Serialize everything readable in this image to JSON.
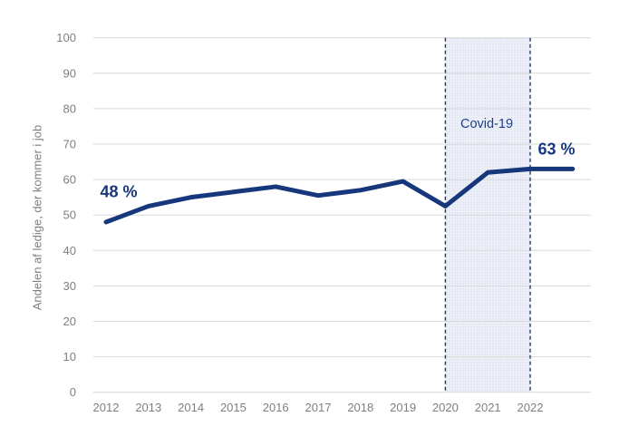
{
  "figure": {
    "background": "#FFFFFF"
  },
  "chart_data": {
    "type": "line",
    "title": "",
    "xlabel": "",
    "ylabel": "Andelen af ledige, der kommer i job",
    "x": [
      2012,
      2013,
      2014,
      2015,
      2016,
      2017,
      2018,
      2019,
      2020,
      2021,
      2022,
      2023
    ],
    "x_axis_labels": [
      "2012",
      "2013",
      "2014",
      "2015",
      "2016",
      "2017",
      "2018",
      "2019",
      "2020",
      "2021",
      "2022"
    ],
    "series": [
      {
        "name": "Andelen af ledige, der kommer i job",
        "values": [
          48,
          52.5,
          55,
          56.5,
          58,
          55.5,
          57,
          59.5,
          52.5,
          62,
          63,
          63
        ]
      }
    ],
    "ylim": [
      0,
      100
    ],
    "ytick_step": 10,
    "grid": "horizontal-only",
    "legend": "none",
    "shaded_region": {
      "label": "Covid-19",
      "x_start": 2020,
      "x_end": 2022
    },
    "annotations": [
      {
        "text": "48 %",
        "x": 2012,
        "y": 48
      },
      {
        "text": "63 %",
        "x": 2023,
        "y": 63
      }
    ],
    "colors": {
      "line": "#17377D",
      "annotation_text": "#17377D",
      "covid_label_text": "#1E3F86",
      "band_fill": "#EEF1F8",
      "band_dots": "#C9D3E8",
      "band_border": "#203A6E",
      "gridline": "#D9D9D9",
      "tick_label": "#7F7F7F",
      "axis_title": "#7F7F7F"
    }
  }
}
